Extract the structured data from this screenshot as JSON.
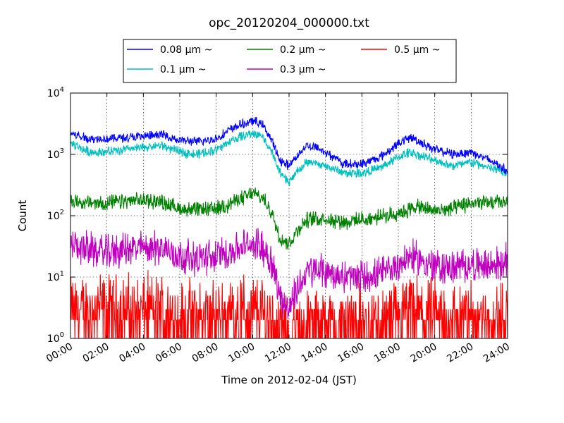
{
  "chart_data": {
    "type": "line",
    "title": "opc_20120204_000000.txt",
    "xlabel": "Time on 2012-02-04 (JST)",
    "ylabel": "Count",
    "yscale": "log",
    "ylim": [
      1,
      10000
    ],
    "xlim_hours": [
      0,
      24
    ],
    "grid": true,
    "legend": {
      "placement": "top-center",
      "columns": 3
    },
    "x_ticks": [
      "00:00",
      "02:00",
      "04:00",
      "06:00",
      "08:00",
      "10:00",
      "12:00",
      "14:00",
      "16:00",
      "18:00",
      "20:00",
      "22:00",
      "24:00"
    ],
    "y_ticks": [
      {
        "value": 1,
        "base": "10",
        "exp": "0"
      },
      {
        "value": 10,
        "base": "10",
        "exp": "1"
      },
      {
        "value": 100,
        "base": "10",
        "exp": "2"
      },
      {
        "value": 1000,
        "base": "10",
        "exp": "3"
      },
      {
        "value": 10000,
        "base": "10",
        "exp": "4"
      }
    ],
    "x_hours": [
      0,
      1,
      2,
      3,
      4,
      5,
      6,
      7,
      8,
      9,
      10,
      10.5,
      11,
      11.5,
      12,
      12.5,
      13,
      13.5,
      14,
      15,
      16,
      17,
      18,
      18.7,
      19,
      20,
      21,
      22,
      23,
      24
    ],
    "series": [
      {
        "name": "0.08 μm ~",
        "color": "#0000ff",
        "values": [
          2200,
          1800,
          1800,
          1900,
          1950,
          2100,
          1700,
          1600,
          1800,
          2800,
          3500,
          3200,
          1800,
          800,
          650,
          1000,
          1400,
          1300,
          1100,
          700,
          700,
          900,
          1500,
          1900,
          1700,
          1200,
          1000,
          1100,
          800,
          550
        ],
        "noise": 0.06
      },
      {
        "name": "0.1 μm ~",
        "color": "#00bfbf",
        "values": [
          1500,
          1100,
          1100,
          1200,
          1300,
          1400,
          1100,
          1000,
          1200,
          1800,
          2200,
          2000,
          1200,
          500,
          350,
          550,
          750,
          700,
          650,
          500,
          500,
          600,
          900,
          1100,
          1000,
          800,
          650,
          750,
          600,
          500
        ],
        "noise": 0.06
      },
      {
        "name": "0.2 μm ~",
        "color": "#008000",
        "values": [
          180,
          160,
          160,
          170,
          180,
          170,
          130,
          125,
          130,
          170,
          230,
          200,
          120,
          45,
          35,
          60,
          85,
          90,
          90,
          80,
          85,
          95,
          110,
          130,
          140,
          120,
          130,
          160,
          160,
          170
        ],
        "noise": 0.1
      },
      {
        "name": "0.3 μm ~",
        "color": "#bf00bf",
        "values": [
          35,
          28,
          25,
          28,
          30,
          30,
          22,
          20,
          22,
          28,
          35,
          32,
          20,
          5,
          3,
          7,
          12,
          13,
          12,
          10,
          10,
          11,
          16,
          22,
          20,
          15,
          14,
          16,
          15,
          18
        ],
        "noise": 0.22
      },
      {
        "name": "0.5 μm ~",
        "color": "#ff0000",
        "values": [
          2.5,
          2.5,
          2.5,
          2.5,
          2.5,
          2.5,
          2,
          2,
          2,
          2.5,
          2.5,
          2.5,
          2,
          1.2,
          1,
          1.2,
          1.5,
          1.5,
          1.5,
          1.5,
          1.5,
          1.5,
          2,
          2.5,
          2.5,
          2,
          2,
          2,
          2,
          2
        ],
        "noise": 0.5
      }
    ]
  }
}
